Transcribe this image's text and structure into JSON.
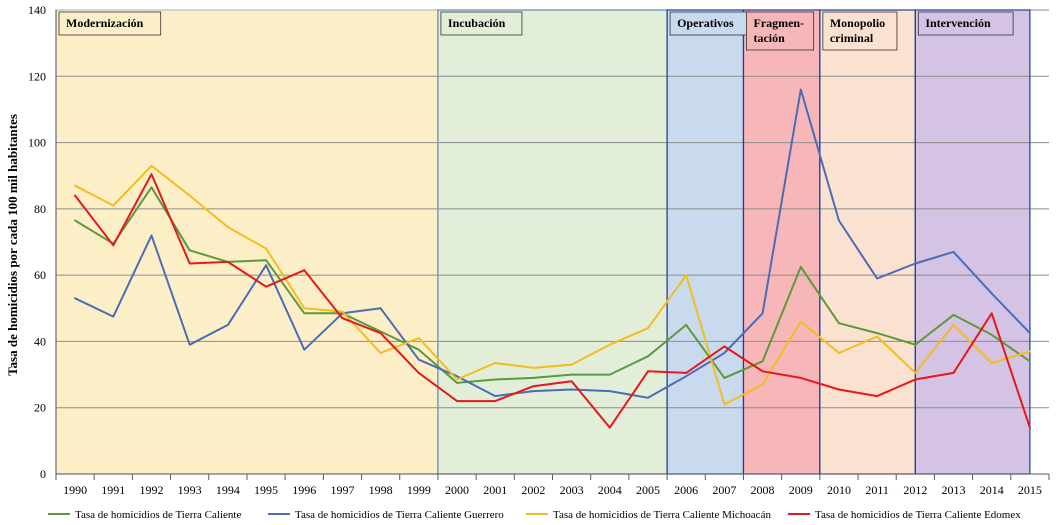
{
  "chart_data": {
    "type": "line",
    "title": "",
    "xlabel": "",
    "ylabel": "Tasa de homicidios por cada 100 mil habitantes",
    "ylim": [
      0,
      140
    ],
    "yticks": [
      0,
      20,
      40,
      60,
      80,
      100,
      120,
      140
    ],
    "grid": true,
    "legend_position": "bottom",
    "categories": [
      "1990",
      "1991",
      "1992",
      "1993",
      "1994",
      "1995",
      "1996",
      "1997",
      "1998",
      "1999",
      "2000",
      "2001",
      "2002",
      "2003",
      "2004",
      "2005",
      "2006",
      "2007",
      "2008",
      "2009",
      "2010",
      "2011",
      "2012",
      "2013",
      "2014",
      "2015"
    ],
    "series": [
      {
        "name": "Tasa de homicidios de Tierra Caliente",
        "color": "#5b9a3a",
        "values": [
          76.5,
          69.5,
          86.5,
          67.5,
          64,
          64.5,
          48.5,
          48.5,
          43,
          37.5,
          27.5,
          28.5,
          29,
          30,
          30,
          35.5,
          45,
          29,
          34,
          62.5,
          45.5,
          42.5,
          39,
          48,
          42,
          34
        ]
      },
      {
        "name": "Tasa de homicidios de Tierra Caliente Guerrero",
        "color": "#4a6db5",
        "values": [
          53,
          47.5,
          72,
          39,
          45,
          63,
          37.5,
          48.5,
          50,
          34.5,
          29.5,
          23.5,
          25,
          25.5,
          25,
          23,
          29.5,
          36.5,
          48.5,
          116,
          76.5,
          59,
          63.5,
          67,
          54.5,
          42.5
        ]
      },
      {
        "name": "Tasa de homicidios de Tierra Caliente Michoacán",
        "color": "#f2bd1d",
        "values": [
          87,
          81,
          93,
          84,
          74.5,
          68,
          50,
          49,
          36.5,
          41,
          28.5,
          33.5,
          32,
          33,
          39,
          44,
          60,
          21,
          27,
          46,
          36.5,
          41.5,
          30.5,
          45,
          33.5,
          37
        ]
      },
      {
        "name": "Tasa de homicidios de Tierra Caliente Edomex",
        "color": "#e3191b",
        "values": [
          84,
          69,
          90.5,
          63.5,
          64,
          56.5,
          61.5,
          47,
          42.5,
          30.5,
          22,
          22,
          26.5,
          28,
          14,
          31,
          30.5,
          38.5,
          31,
          29,
          25.5,
          23.5,
          28.5,
          30.5,
          48.5,
          14
        ]
      }
    ],
    "phases": [
      {
        "label": [
          "Modernización"
        ],
        "start_year": 1990,
        "end_year": 2000,
        "fill": "#fcefc8",
        "border": "#a7c0d8"
      },
      {
        "label": [
          "Incubación"
        ],
        "start_year": 2000,
        "end_year": 2006,
        "fill": "#e3eed9",
        "border": "#5e8fb3"
      },
      {
        "label": [
          "Operativos"
        ],
        "start_year": 2006,
        "end_year": 2008,
        "fill": "#c9daef",
        "border": "#1f3f9a"
      },
      {
        "label": [
          "Fragmen-",
          "tación"
        ],
        "start_year": 2008,
        "end_year": 2010,
        "fill": "#f7b7b9",
        "border": "#1f3f9a"
      },
      {
        "label": [
          "Monopolio",
          "criminal"
        ],
        "start_year": 2010,
        "end_year": 2012.5,
        "fill": "#fbe1cf",
        "border": "#1f3f9a"
      },
      {
        "label": [
          "Intervención"
        ],
        "start_year": 2012.5,
        "end_year": 2015.5,
        "fill": "#d5c3e6",
        "border": "#1f3f9a"
      }
    ]
  }
}
